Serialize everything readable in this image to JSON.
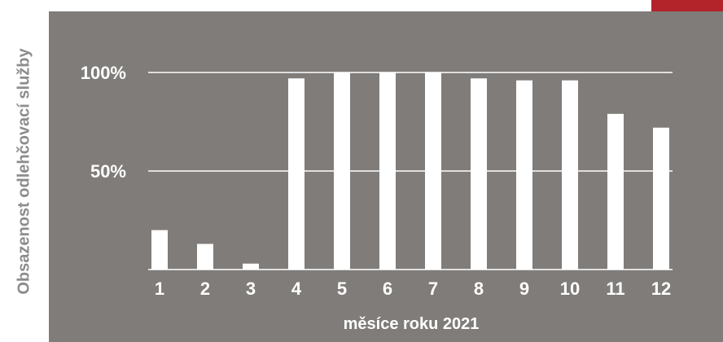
{
  "chart_data": {
    "type": "bar",
    "categories": [
      "1",
      "2",
      "3",
      "4",
      "5",
      "6",
      "7",
      "8",
      "9",
      "10",
      "11",
      "12"
    ],
    "values": [
      20,
      13,
      3,
      97,
      100,
      100,
      100,
      97,
      96,
      96,
      79,
      72
    ],
    "xlabel": "měsíce roku 2021",
    "ylabel": "Obsazenost odlehčovací služby",
    "ylim": [
      0,
      100
    ],
    "yticks": [
      {
        "value": 50,
        "label": "50%"
      },
      {
        "value": 100,
        "label": "100%"
      }
    ],
    "grid": true,
    "colors": {
      "background": "#7f7c79",
      "bars": "#ffffff",
      "accent": "#b3232a",
      "ylabel": "#8c8c8c"
    }
  }
}
